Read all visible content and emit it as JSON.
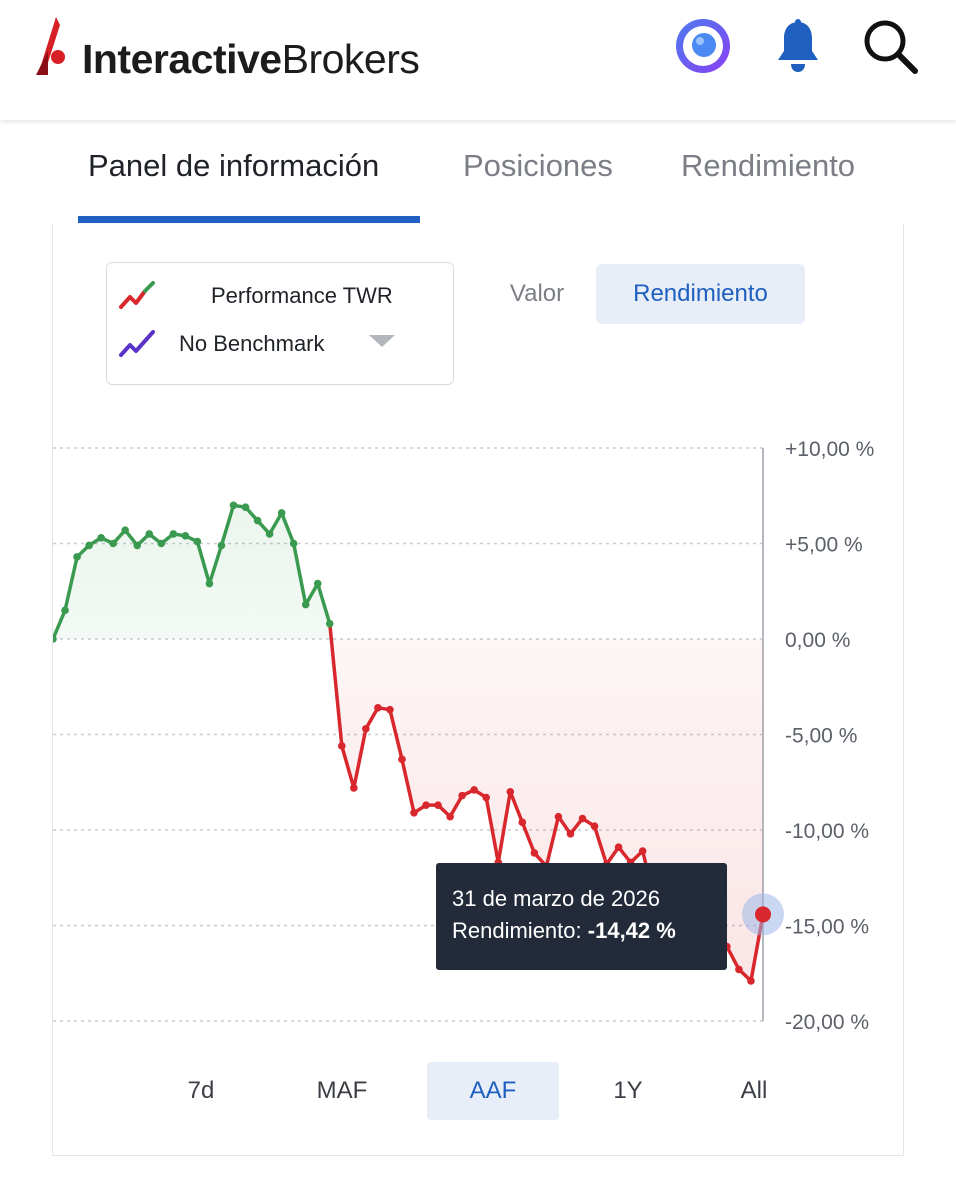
{
  "app": {
    "logo_bold": "Interactive",
    "logo_regular": "Brokers",
    "brand_color": "#d81f26",
    "accent_color": "#1f5fbf",
    "icons": [
      "assistant-orb-icon",
      "bell-icon",
      "search-icon"
    ]
  },
  "tabs": [
    {
      "label": "Panel de información",
      "active": true
    },
    {
      "label": "Posiciones",
      "active": false
    },
    {
      "label": "Rendimiento",
      "active": false
    }
  ],
  "selector": {
    "primary": "Performance TWR",
    "benchmark": "No Benchmark"
  },
  "modes": {
    "valor": "Valor",
    "rendimiento": "Rendimiento",
    "active": "rendimiento"
  },
  "ranges": [
    {
      "label": "7d",
      "active": false
    },
    {
      "label": "MAF",
      "active": false
    },
    {
      "label": "AAF",
      "active": true
    },
    {
      "label": "1Y",
      "active": false
    },
    {
      "label": "All",
      "active": false
    }
  ],
  "tooltip": {
    "date": "31 de marzo de 2026",
    "label": "Rendimiento:",
    "value": "-14,42 %"
  },
  "chart_data": {
    "type": "line",
    "ylim": [
      -20,
      10
    ],
    "y_ticks": [
      10,
      5,
      0,
      -5,
      -10,
      -15,
      -20
    ],
    "y_tick_labels": [
      "+10,00 %",
      "+5,00 %",
      "0,00 %",
      "-5,00 %",
      "-10,00 %",
      "-15,00 %",
      "-20,00 %"
    ],
    "grid": true,
    "positive_color": "#3a9a4f",
    "negative_color": "#d8272d",
    "series": [
      {
        "values": [
          0.0,
          1.5,
          4.3,
          4.9,
          5.3,
          5.0,
          5.7,
          4.9,
          5.5,
          5.0,
          5.5,
          5.4,
          5.1,
          2.9,
          4.9,
          7.0,
          6.9,
          6.2,
          5.5,
          6.6,
          5.0,
          1.8,
          2.9,
          0.8,
          -5.6,
          -7.8,
          -4.7,
          -3.6,
          -3.7,
          -6.3,
          -9.1,
          -8.7,
          -8.7,
          -9.3,
          -8.2,
          -7.9,
          -8.3,
          -11.7,
          -8.0,
          -9.6,
          -11.2,
          -11.9,
          -9.3,
          -10.2,
          -9.4,
          -9.8,
          -11.8,
          -10.9,
          -11.7,
          -11.1,
          -13.7,
          -14.2,
          -14.6,
          -14.3,
          -15.4,
          -15.1,
          -16.1,
          -17.3,
          -17.9,
          -14.42
        ]
      }
    ]
  }
}
